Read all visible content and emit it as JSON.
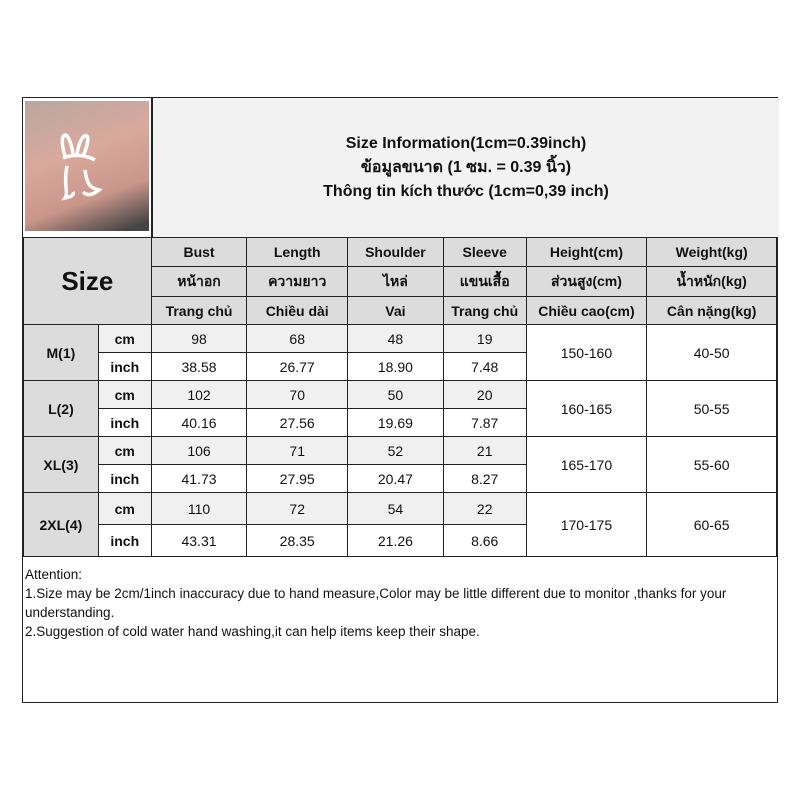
{
  "title": {
    "line1": "Size Information(1cm=0.39inch)",
    "line2": "ข้อมูลขนาด (1 ซม. = 0.39 นิ้ว)",
    "line3": "Thông tin kích thước (1cm=0,39 inch)"
  },
  "size_label": "Size",
  "columns": [
    {
      "en": "Bust",
      "th": "หน้าอก",
      "vi": "Trang chủ"
    },
    {
      "en": "Length",
      "th": "ความยาว",
      "vi": "Chiều dài"
    },
    {
      "en": "Shoulder",
      "th": "ไหล่",
      "vi": "Vai"
    },
    {
      "en": "Sleeve",
      "th": "แขนเสื้อ",
      "vi": "Trang chủ"
    },
    {
      "en": "Height(cm)",
      "th": "ส่วนสูง(cm)",
      "vi": "Chiều cao(cm)"
    },
    {
      "en": "Weight(kg)",
      "th": "น้ำหนัก(kg)",
      "vi": "Cân nặng(kg)"
    }
  ],
  "units": {
    "cm": "cm",
    "inch": "inch"
  },
  "rows": [
    {
      "size": "M(1)",
      "cm": [
        "98",
        "68",
        "48",
        "19"
      ],
      "inch": [
        "38.58",
        "26.77",
        "18.90",
        "7.48"
      ],
      "height": "150-160",
      "weight": "40-50"
    },
    {
      "size": "L(2)",
      "cm": [
        "102",
        "70",
        "50",
        "20"
      ],
      "inch": [
        "40.16",
        "27.56",
        "19.69",
        "7.87"
      ],
      "height": "160-165",
      "weight": "50-55"
    },
    {
      "size": "XL(3)",
      "cm": [
        "106",
        "71",
        "52",
        "21"
      ],
      "inch": [
        "41.73",
        "27.95",
        "20.47",
        "8.27"
      ],
      "height": "165-170",
      "weight": "55-60"
    },
    {
      "size": "2XL(4)",
      "cm": [
        "110",
        "72",
        "54",
        "22"
      ],
      "inch": [
        "43.31",
        "28.35",
        "21.26",
        "8.66"
      ],
      "height": "170-175",
      "weight": "60-65"
    }
  ],
  "attention": {
    "title": "Attention:",
    "line1": "1.Size may be 2cm/1inch inaccuracy due to hand measure,Color may be little different due to monitor ,thanks for your understanding.",
    "line2": "2.Suggestion of cold water hand washing,it can help items keep their shape."
  }
}
